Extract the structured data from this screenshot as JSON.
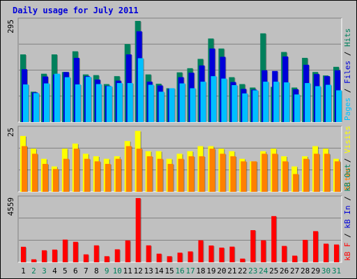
{
  "chart_data": {
    "type": "bar",
    "title": "Daily usage for July 2011",
    "categories": [
      "1",
      "2",
      "3",
      "4",
      "5",
      "6",
      "7",
      "8",
      "9",
      "10",
      "11",
      "12",
      "13",
      "14",
      "15",
      "16",
      "17",
      "18",
      "19",
      "20",
      "21",
      "22",
      "23",
      "24",
      "25",
      "26",
      "27",
      "28",
      "29",
      "30",
      "31"
    ],
    "weekend_days": [
      "2",
      "3",
      "9",
      "10",
      "16",
      "17",
      "23",
      "24",
      "30",
      "31"
    ],
    "colors": {
      "hits": "#00805c",
      "files": "#0000d8",
      "pages": "#00c0ff",
      "visits": "#ffff00",
      "sites": "#ff8000",
      "kb_in": "#0000d8",
      "kb_out": "#00805c",
      "kb_f": "#ff0000",
      "weekday_label": "#000000",
      "weekend_label": "#00805c",
      "title": "#0000d8",
      "plot_bg": "#c0c0c0",
      "grid": "#808080"
    },
    "panels": [
      {
        "id": "usage",
        "ymax": 295,
        "ymax_label": "295",
        "legend": [
          {
            "text": "Pages",
            "color": "#00c0ff"
          },
          {
            "text": " / ",
            "color": "#000000"
          },
          {
            "text": "Files",
            "color": "#0000d8"
          },
          {
            "text": " / ",
            "color": "#000000"
          },
          {
            "text": "Hits",
            "color": "#00805c"
          }
        ],
        "series": [
          {
            "name": "Hits",
            "key": "hits",
            "values": [
              196,
              88,
              140,
              196,
              145,
              205,
              138,
              136,
              110,
              133,
              226,
              293,
              138,
              111,
              98,
              144,
              156,
              183,
              242,
              213,
              130,
              110,
              100,
              257,
              102,
              203,
              100,
              186,
              145,
              135,
              160
            ]
          },
          {
            "name": "Files",
            "key": "files",
            "values": [
              153,
              86,
              132,
              138,
              145,
              186,
              133,
              123,
              105,
              120,
              196,
              263,
              117,
              106,
              96,
              130,
              143,
              164,
              213,
              189,
              116,
              96,
              94,
              150,
              148,
              190,
              95,
              166,
              139,
              133,
              150
            ]
          },
          {
            "name": "Pages",
            "key": "pages",
            "values": [
              109,
              84,
              112,
              140,
              130,
              109,
              131,
              110,
              104,
              113,
              113,
              185,
              108,
              88,
              98,
              112,
              98,
              117,
              133,
              126,
              107,
              83,
              92,
              117,
              117,
              115,
              80,
              113,
              104,
              108,
              92
            ]
          }
        ]
      },
      {
        "id": "visitors",
        "ymax": 25,
        "ymax_label": "25",
        "legend": [
          {
            "text": "Sites",
            "color": "#ff8000"
          },
          {
            "text": " / ",
            "color": "#000000"
          },
          {
            "text": "Visits",
            "color": "#ffff00"
          }
        ],
        "series": [
          {
            "name": "Visits",
            "key": "visits",
            "values": [
              22,
              17,
              13,
              10,
              17,
              19,
              15,
              14,
              13,
              14,
              20,
              24,
              16,
              16,
              13,
              15,
              16,
              18,
              18,
              17,
              16,
              13,
              12,
              16,
              17,
              14,
              10,
              14,
              18,
              17,
              13
            ]
          },
          {
            "name": "Sites",
            "key": "sites",
            "values": [
              18,
              15,
              11,
              9,
              13,
              17,
              13,
              12,
              11,
              13,
              18,
              17,
              14,
              13,
              11,
              13,
              14,
              14,
              17,
              15,
              14,
              12,
              12,
              15,
              15,
              12,
              7,
              13,
              15,
              15,
              12
            ]
          }
        ]
      },
      {
        "id": "traffic",
        "ymax": 4559,
        "ymax_label": "4559",
        "legend": [
          {
            "text": "kB F",
            "color": "#ff0000"
          },
          {
            "text": " / ",
            "color": "#000000"
          },
          {
            "text": "kB In",
            "color": "#0000d8"
          },
          {
            "text": " / ",
            "color": "#000000"
          },
          {
            "text": "kB Out",
            "color": "#00805c"
          }
        ],
        "series": [
          {
            "name": "kB F",
            "key": "kb_f",
            "values": [
              1100,
              210,
              850,
              900,
              1610,
              1450,
              560,
              1200,
              430,
              920,
              1550,
              4559,
              1200,
              610,
              430,
              680,
              770,
              1560,
              1190,
              1040,
              1110,
              260,
              2280,
              1560,
              3280,
              1160,
              470,
              1590,
              2210,
              1320,
              1260
            ]
          }
        ]
      }
    ]
  }
}
